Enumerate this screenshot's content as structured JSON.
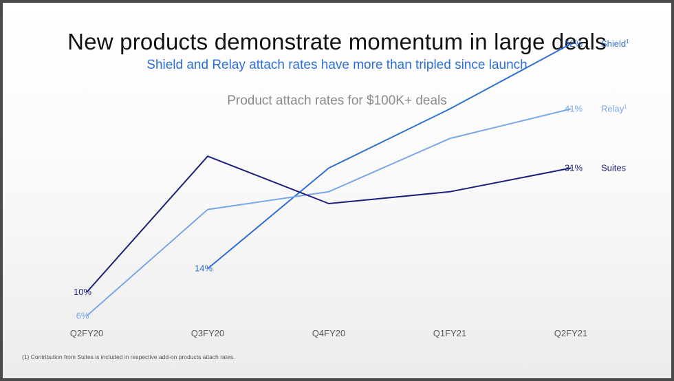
{
  "slide": {
    "title": "New products demonstrate momentum in large deals",
    "subtitle": "Shield and Relay attach rates have more than tripled since launch",
    "footnote": "(1) Contribution from Suites is included in respective add-on products attach rates."
  },
  "chart_data": {
    "type": "line",
    "title": "Product attach rates for $100K+ deals",
    "xlabel": "",
    "ylabel": "",
    "unit": "%",
    "categories": [
      "Q2FY20",
      "Q3FY20",
      "Q4FY20",
      "Q1FY21",
      "Q2FY21"
    ],
    "ylim": [
      0,
      60
    ],
    "grid": false,
    "series": [
      {
        "name": "Shield",
        "superscript": "1",
        "color": "#2f6fd3",
        "values": [
          null,
          14,
          31,
          41,
          52
        ],
        "labels": [
          null,
          "14%",
          null,
          null,
          "52%"
        ]
      },
      {
        "name": "Relay",
        "superscript": "1",
        "color": "#7aa6e8",
        "values": [
          6,
          24,
          27,
          36,
          41
        ],
        "labels": [
          "6%",
          null,
          null,
          null,
          "41%"
        ]
      },
      {
        "name": "Suites",
        "superscript": "",
        "color": "#1a1f78",
        "values": [
          10,
          33,
          25,
          27,
          31
        ],
        "labels": [
          "10%",
          null,
          null,
          null,
          "31%"
        ]
      }
    ]
  }
}
